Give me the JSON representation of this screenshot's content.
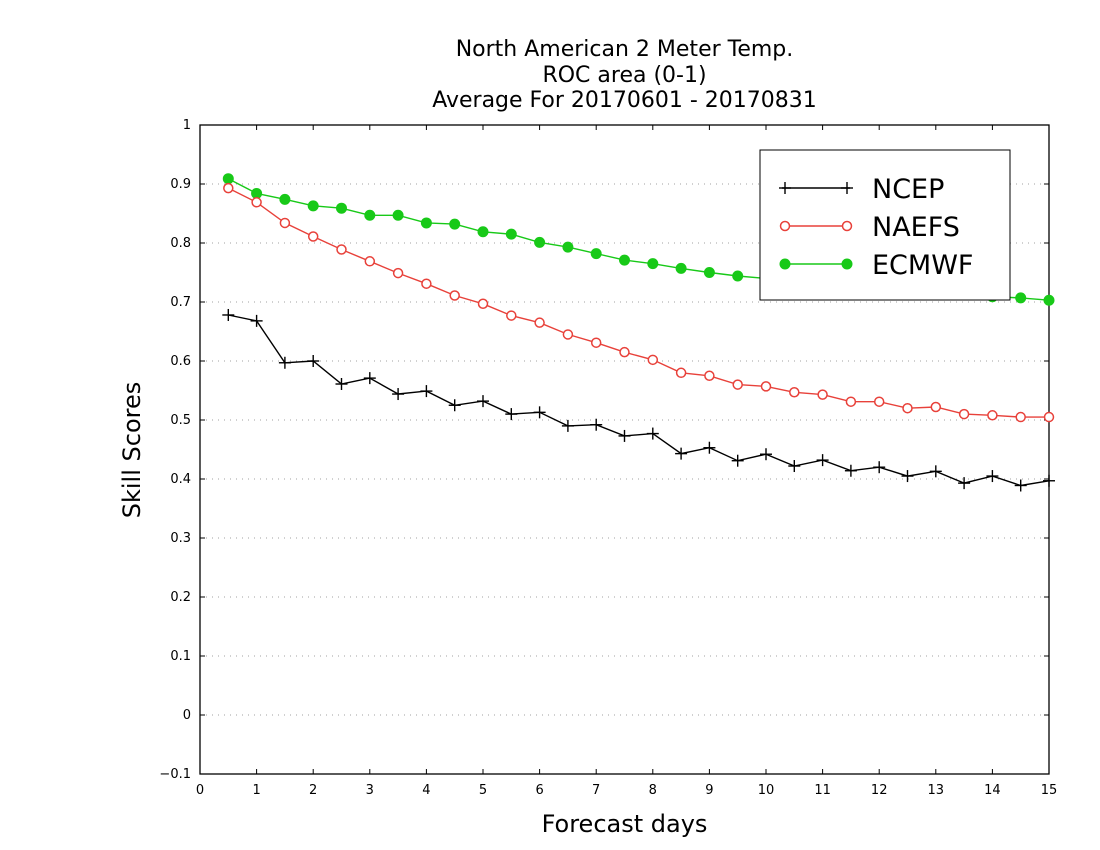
{
  "chart_data": {
    "type": "line",
    "title": [
      "North American 2 Meter Temp.",
      "ROC area (0-1)",
      "Average For 20170601 - 20170831"
    ],
    "xlabel": "Forecast days",
    "ylabel": "Skill Scores",
    "xlim": [
      0,
      15
    ],
    "ylim": [
      -0.1,
      1
    ],
    "xticks": [
      "0",
      "1",
      "2",
      "3",
      "4",
      "5",
      "6",
      "7",
      "8",
      "9",
      "10",
      "11",
      "12",
      "13",
      "14",
      "15"
    ],
    "yticks": [
      "−0.1",
      "0",
      "0.1",
      "0.2",
      "0.3",
      "0.4",
      "0.5",
      "0.6",
      "0.7",
      "0.8",
      "0.9",
      "1"
    ],
    "grid": true,
    "legend_position": "top-right",
    "x": [
      0.5,
      1,
      1.5,
      2,
      2.5,
      3,
      3.5,
      4,
      4.5,
      5,
      5.5,
      6,
      6.5,
      7,
      7.5,
      8,
      8.5,
      9,
      9.5,
      10,
      10.5,
      11,
      11.5,
      12,
      12.5,
      13,
      13.5,
      14,
      14.5,
      15
    ],
    "series": [
      {
        "name": "NCEP",
        "color": "#000000",
        "marker": "plus",
        "values": [
          0.678,
          0.668,
          0.597,
          0.6,
          0.561,
          0.571,
          0.544,
          0.549,
          0.525,
          0.532,
          0.51,
          0.513,
          0.49,
          0.492,
          0.473,
          0.477,
          0.443,
          0.453,
          0.431,
          0.442,
          0.422,
          0.432,
          0.414,
          0.42,
          0.405,
          0.413,
          0.393,
          0.405,
          0.389,
          0.397
        ]
      },
      {
        "name": "NAEFS",
        "color": "#e8413a",
        "marker": "open-circle",
        "values": [
          0.893,
          0.869,
          0.834,
          0.811,
          0.789,
          0.769,
          0.749,
          0.731,
          0.711,
          0.697,
          0.677,
          0.665,
          0.645,
          0.631,
          0.615,
          0.602,
          0.58,
          0.575,
          0.56,
          0.557,
          0.547,
          0.543,
          0.531,
          0.531,
          0.52,
          0.522,
          0.51,
          0.508,
          0.505,
          0.505
        ]
      },
      {
        "name": "ECMWF",
        "color": "#18c918",
        "marker": "filled-circle",
        "values": [
          0.909,
          0.884,
          0.874,
          0.863,
          0.859,
          0.847,
          0.847,
          0.834,
          0.832,
          0.819,
          0.815,
          0.801,
          0.793,
          0.782,
          0.771,
          0.765,
          0.757,
          0.75,
          0.744,
          0.74,
          0.736,
          0.732,
          0.728,
          0.724,
          0.72,
          0.716,
          0.712,
          0.709,
          0.707,
          0.703
        ]
      }
    ]
  }
}
